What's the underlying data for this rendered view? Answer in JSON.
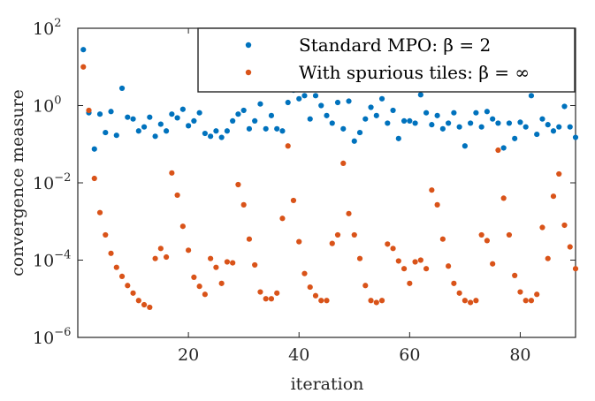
{
  "chart_data": {
    "type": "scatter",
    "title": "",
    "xlabel": "iteration",
    "ylabel": "convergence measure",
    "xlim": [
      0,
      90
    ],
    "ylim_log10": [
      -6,
      2
    ],
    "y_scale": "log",
    "x_ticks": [
      {
        "value": 20,
        "label": "20"
      },
      {
        "value": 40,
        "label": "40"
      },
      {
        "value": 60,
        "label": "60"
      },
      {
        "value": 80,
        "label": "80"
      }
    ],
    "y_ticks": [
      {
        "exp": 2,
        "base": "10",
        "sup": "2"
      },
      {
        "exp": 0,
        "base": "10",
        "sup": "0"
      },
      {
        "exp": -2,
        "base": "10",
        "sup": "−2"
      },
      {
        "exp": -4,
        "base": "10",
        "sup": "−4"
      },
      {
        "exp": -6,
        "base": "10",
        "sup": "−6"
      }
    ],
    "legend_position": "top-right",
    "series": [
      {
        "name": "Standard MPO: β = 2",
        "color": "#0072bd",
        "x": [
          1,
          2,
          3,
          4,
          5,
          6,
          7,
          8,
          9,
          10,
          11,
          12,
          13,
          14,
          15,
          16,
          17,
          18,
          19,
          20,
          21,
          22,
          23,
          24,
          25,
          26,
          27,
          28,
          29,
          30,
          31,
          32,
          33,
          34,
          35,
          36,
          37,
          38,
          39,
          40,
          41,
          42,
          43,
          44,
          45,
          46,
          47,
          48,
          49,
          50,
          51,
          52,
          53,
          54,
          55,
          56,
          57,
          58,
          59,
          60,
          61,
          62,
          63,
          64,
          65,
          66,
          67,
          68,
          69,
          70,
          71,
          72,
          73,
          74,
          75,
          76,
          77,
          78,
          79,
          80,
          81,
          82,
          83,
          84,
          85,
          86,
          87,
          88,
          89,
          90
        ],
        "y": [
          28,
          0.65,
          0.075,
          0.6,
          0.2,
          0.7,
          0.17,
          2.8,
          0.5,
          0.45,
          0.22,
          0.28,
          0.5,
          0.16,
          0.33,
          0.22,
          0.6,
          0.48,
          0.8,
          0.3,
          0.4,
          0.65,
          0.19,
          0.16,
          0.22,
          0.15,
          0.22,
          0.4,
          0.6,
          0.75,
          0.25,
          0.4,
          1.1,
          0.25,
          0.55,
          0.25,
          0.22,
          1.2,
          2.5,
          1.5,
          1.8,
          0.45,
          1.8,
          1.0,
          0.55,
          0.35,
          1.2,
          0.25,
          1.3,
          0.12,
          0.2,
          0.45,
          0.9,
          0.55,
          1.5,
          0.35,
          0.75,
          0.14,
          0.4,
          0.4,
          0.35,
          1.9,
          0.65,
          0.32,
          0.55,
          0.25,
          0.35,
          0.65,
          0.28,
          0.09,
          0.35,
          0.65,
          0.28,
          0.7,
          0.45,
          0.35,
          0.08,
          0.35,
          0.14,
          0.37,
          0.28,
          1.8,
          0.18,
          0.45,
          0.32,
          0.22,
          0.28,
          0.95,
          0.28,
          0.15
        ]
      },
      {
        "name": "With spurious tiles: β = ∞",
        "color": "#d95319",
        "x": [
          1,
          2,
          3,
          4,
          5,
          6,
          7,
          8,
          9,
          10,
          11,
          12,
          13,
          14,
          15,
          16,
          17,
          18,
          19,
          20,
          21,
          22,
          23,
          24,
          25,
          26,
          27,
          28,
          29,
          30,
          31,
          32,
          33,
          34,
          35,
          36,
          37,
          38,
          39,
          40,
          41,
          42,
          43,
          44,
          45,
          46,
          47,
          48,
          49,
          50,
          51,
          52,
          53,
          54,
          55,
          56,
          57,
          58,
          59,
          60,
          61,
          62,
          63,
          64,
          65,
          66,
          67,
          68,
          69,
          70,
          71,
          72,
          73,
          74,
          75,
          76,
          77,
          78,
          79,
          80,
          81,
          82,
          83,
          84,
          85,
          86,
          87,
          88,
          89,
          90
        ],
        "y": [
          10,
          0.75,
          0.013,
          0.0017,
          0.00045,
          0.00015,
          6.5e-05,
          3.8e-05,
          2.2e-05,
          1.4e-05,
          9e-06,
          7e-06,
          6e-06,
          0.00011,
          0.0002,
          0.00012,
          0.018,
          0.0048,
          0.00075,
          0.00018,
          3.6e-05,
          2.1e-05,
          1.3e-05,
          0.00011,
          6.5e-05,
          2.5e-05,
          9e-05,
          8.5e-05,
          0.009,
          0.0027,
          0.00035,
          7.5e-05,
          1.5e-05,
          1e-05,
          1e-05,
          1.4e-05,
          0.0012,
          0.09,
          0.0035,
          0.0003,
          4.5e-05,
          2e-05,
          1.2e-05,
          9e-06,
          9e-06,
          0.00027,
          0.00045,
          0.032,
          0.0016,
          0.00045,
          0.00011,
          2.2e-05,
          9e-06,
          8e-06,
          9e-06,
          0.00026,
          0.0002,
          9.5e-05,
          6e-05,
          2.5e-05,
          9e-05,
          0.0001,
          6e-05,
          0.0065,
          0.0027,
          0.00035,
          7e-05,
          2.5e-05,
          1.4e-05,
          9e-06,
          8e-06,
          9e-06,
          0.00045,
          0.00032,
          8e-05,
          0.07,
          0.004,
          0.00045,
          4e-05,
          1.5e-05,
          9e-06,
          9e-06,
          1.3e-05,
          0.0007,
          0.00011,
          0.0045,
          0.017,
          0.0008,
          0.00022,
          6e-05
        ]
      }
    ]
  }
}
